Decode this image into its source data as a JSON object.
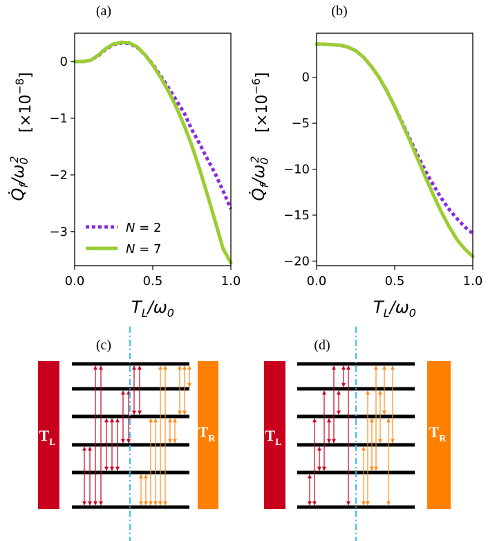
{
  "panel_labels": [
    "(a)",
    "(b)",
    "(c)",
    "(d)"
  ],
  "legend": [
    {
      "label": "N = 2",
      "color": "#8a2be2",
      "style": "dotted"
    },
    {
      "label": "N = 7",
      "color": "#9acd32",
      "style": "solid"
    }
  ],
  "chart_data": [
    {
      "type": "line",
      "panel": "(a)",
      "xlabel": "T_L/ω_0",
      "ylabel": "Q̇_f/ω_0^2",
      "yscale_label": "[×10^−8]",
      "xlim": [
        0.0,
        1.0
      ],
      "ylim": [
        -3.6,
        0.5
      ],
      "xticks": [
        0.0,
        0.5,
        1.0
      ],
      "xtick_labels": [
        "0.0",
        "0.5",
        "1.0"
      ],
      "yticks": [
        0,
        -1,
        -2,
        -3
      ],
      "ytick_labels": [
        "0",
        "−1",
        "−2",
        "−3"
      ],
      "series": [
        {
          "name": "N = 2",
          "color": "#8a2be2",
          "style": "dotted",
          "x": [
            0.0,
            0.05,
            0.1,
            0.15,
            0.2,
            0.25,
            0.3,
            0.35,
            0.4,
            0.45,
            0.5,
            0.55,
            0.6,
            0.65,
            0.7,
            0.75,
            0.8,
            0.85,
            0.9,
            0.95,
            1.0
          ],
          "y": [
            0.0,
            0.0,
            0.02,
            0.1,
            0.22,
            0.3,
            0.33,
            0.32,
            0.25,
            0.12,
            -0.05,
            -0.25,
            -0.46,
            -0.68,
            -0.9,
            -1.2,
            -1.45,
            -1.72,
            -1.98,
            -2.28,
            -2.6
          ]
        },
        {
          "name": "N = 7",
          "color": "#9acd32",
          "style": "solid",
          "x": [
            0.0,
            0.05,
            0.1,
            0.15,
            0.2,
            0.25,
            0.3,
            0.35,
            0.4,
            0.45,
            0.5,
            0.55,
            0.6,
            0.65,
            0.7,
            0.75,
            0.8,
            0.85,
            0.9,
            0.95,
            1.0
          ],
          "y": [
            0.0,
            0.0,
            0.02,
            0.11,
            0.23,
            0.31,
            0.34,
            0.33,
            0.26,
            0.12,
            -0.06,
            -0.28,
            -0.52,
            -0.8,
            -1.12,
            -1.48,
            -1.9,
            -2.35,
            -2.82,
            -3.3,
            -3.55
          ]
        }
      ]
    },
    {
      "type": "line",
      "panel": "(b)",
      "xlabel": "T_L/ω_0",
      "ylabel": "Q̇_f/ω_0^2",
      "yscale_label": "[×10^−6]",
      "xlim": [
        0.0,
        1.0
      ],
      "ylim": [
        -20.5,
        4.8
      ],
      "xticks": [
        0.0,
        0.5,
        1.0
      ],
      "xtick_labels": [
        "0.0",
        "0.5",
        "1.0"
      ],
      "yticks": [
        0,
        -5,
        -10,
        -15,
        -20
      ],
      "ytick_labels": [
        "0",
        "−5",
        "−10",
        "−15",
        "−20"
      ],
      "series": [
        {
          "name": "N = 2",
          "color": "#8a2be2",
          "style": "dotted",
          "x": [
            0.0,
            0.05,
            0.1,
            0.15,
            0.2,
            0.25,
            0.3,
            0.35,
            0.4,
            0.45,
            0.5,
            0.55,
            0.6,
            0.65,
            0.7,
            0.75,
            0.8,
            0.85,
            0.9,
            0.95,
            1.0
          ],
          "y": [
            3.6,
            3.6,
            3.55,
            3.5,
            3.3,
            2.9,
            2.2,
            1.2,
            0.0,
            -1.5,
            -3.2,
            -5.0,
            -6.8,
            -8.6,
            -10.3,
            -11.8,
            -13.2,
            -14.4,
            -15.4,
            -16.3,
            -17.0
          ]
        },
        {
          "name": "N = 7",
          "color": "#9acd32",
          "style": "solid",
          "x": [
            0.0,
            0.05,
            0.1,
            0.15,
            0.2,
            0.25,
            0.3,
            0.35,
            0.4,
            0.45,
            0.5,
            0.55,
            0.6,
            0.65,
            0.7,
            0.75,
            0.8,
            0.85,
            0.9,
            0.95,
            1.0
          ],
          "y": [
            3.6,
            3.6,
            3.55,
            3.5,
            3.3,
            2.9,
            2.2,
            1.2,
            0.0,
            -1.5,
            -3.2,
            -5.1,
            -7.0,
            -9.0,
            -11.0,
            -12.9,
            -14.7,
            -16.3,
            -17.7,
            -18.7,
            -19.5
          ]
        }
      ]
    }
  ],
  "diagrams": [
    {
      "panel": "(c)",
      "left_bath": {
        "label": "T",
        "sub": "L",
        "color": "#c8001e"
      },
      "right_bath": {
        "label": "T",
        "sub": "R",
        "color": "#ff8000"
      },
      "levels": 6,
      "divider_color": "#29b6f6",
      "left_transitions": [
        [
          0,
          2
        ],
        [
          0,
          2
        ],
        [
          0,
          5
        ],
        [
          0,
          5
        ],
        [
          1,
          3
        ],
        [
          1,
          3
        ],
        [
          1,
          3
        ],
        [
          2,
          4
        ],
        [
          2,
          4
        ],
        [
          3,
          5
        ],
        [
          3,
          5
        ]
      ],
      "right_transitions": [
        [
          0,
          1
        ],
        [
          0,
          1
        ],
        [
          0,
          3
        ],
        [
          0,
          3
        ],
        [
          0,
          5
        ],
        [
          0,
          5
        ],
        [
          2,
          3
        ],
        [
          2,
          3
        ],
        [
          3,
          5
        ],
        [
          3,
          5
        ],
        [
          4,
          5
        ]
      ]
    },
    {
      "panel": "(d)",
      "left_bath": {
        "label": "T",
        "sub": "L",
        "color": "#c8001e"
      },
      "right_bath": {
        "label": "T",
        "sub": "R",
        "color": "#ff8000"
      },
      "levels": 6,
      "divider_color": "#29b6f6",
      "left_transitions": [
        [
          0,
          1
        ],
        [
          0,
          3
        ],
        [
          1,
          2
        ],
        [
          1,
          4
        ],
        [
          2,
          3
        ],
        [
          2,
          5
        ],
        [
          3,
          4
        ],
        [
          4,
          5
        ],
        [
          0,
          5
        ]
      ],
      "right_transitions": [
        [
          0,
          2
        ],
        [
          0,
          4
        ],
        [
          1,
          3
        ],
        [
          1,
          5
        ],
        [
          2,
          4
        ],
        [
          3,
          5
        ],
        [
          0,
          3
        ],
        [
          2,
          5
        ]
      ]
    }
  ]
}
